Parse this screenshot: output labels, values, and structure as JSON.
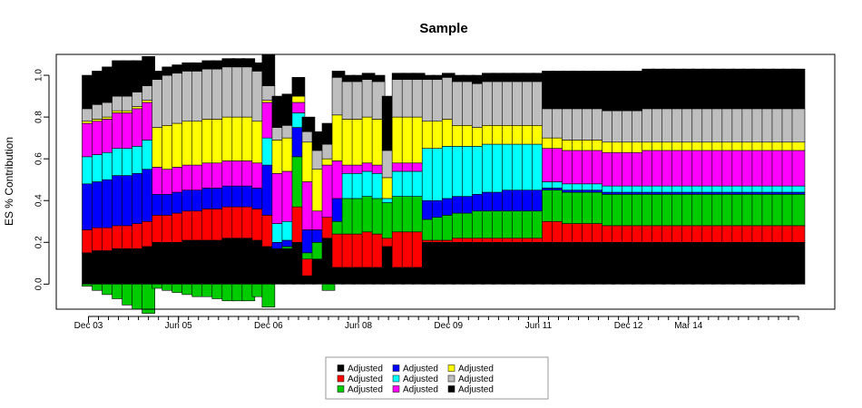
{
  "chart_data": {
    "type": "bar",
    "stacked": true,
    "title": "Sample",
    "xlabel": "",
    "ylabel": "ES % Contribution",
    "ylim": [
      -0.12,
      1.1
    ],
    "y_ticks": [
      0.0,
      0.2,
      0.4,
      0.6,
      0.8,
      1.0
    ],
    "y_tick_labels": [
      "0.0",
      "0.2",
      "0.4",
      "0.6",
      "0.8",
      "1.0"
    ],
    "x_ticks": [
      {
        "label": "Dec 03",
        "index": 0
      },
      {
        "label": "Jun 05",
        "index": 9
      },
      {
        "label": "Dec 06",
        "index": 18
      },
      {
        "label": "Jun 08",
        "index": 27
      },
      {
        "label": "Dec 09",
        "index": 36
      },
      {
        "label": "Jun 11",
        "index": 45
      },
      {
        "label": "Dec 12",
        "index": 54
      },
      {
        "label": "Mar 14",
        "index": 60
      }
    ],
    "grid": false,
    "legend_position": "bottom",
    "colors": [
      "#000000",
      "#ff0000",
      "#00cc00",
      "#0000ff",
      "#00ffff",
      "#ff00ff",
      "#ffff00",
      "#bebebe",
      "#000000"
    ],
    "series": [
      {
        "name": "Adjusted",
        "color": "#000000",
        "values": [
          0.15,
          0.16,
          0.16,
          0.17,
          0.17,
          0.17,
          0.18,
          0.2,
          0.2,
          0.2,
          0.21,
          0.21,
          0.21,
          0.21,
          0.22,
          0.22,
          0.22,
          0.21,
          0.18,
          0.17,
          0.17,
          0.2,
          0.04,
          0.12,
          0.22,
          0.08,
          0.08,
          0.08,
          0.08,
          0.08,
          0.18,
          0.08,
          0.08,
          0.08,
          0.2,
          0.2,
          0.2,
          0.2,
          0.2,
          0.2,
          0.2,
          0.2,
          0.2,
          0.2,
          0.2,
          0.2,
          0.2,
          0.2,
          0.2,
          0.2,
          0.2,
          0.2,
          0.2,
          0.2,
          0.2,
          0.2,
          0.2,
          0.2,
          0.2,
          0.2,
          0.2,
          0.2,
          0.2,
          0.2,
          0.2,
          0.2,
          0.2,
          0.2,
          0.2,
          0.2,
          0.2,
          0.2
        ]
      },
      {
        "name": "Adjusted",
        "color": "#ff0000",
        "values": [
          0.11,
          0.11,
          0.11,
          0.11,
          0.11,
          0.12,
          0.12,
          0.13,
          0.13,
          0.14,
          0.14,
          0.14,
          0.15,
          0.15,
          0.15,
          0.15,
          0.15,
          0.15,
          0.15,
          0.0,
          0.0,
          0.17,
          0.08,
          0.0,
          0.1,
          0.16,
          0.16,
          0.16,
          0.17,
          0.16,
          0.04,
          0.17,
          0.17,
          0.17,
          0.01,
          0.01,
          0.01,
          0.02,
          0.02,
          0.02,
          0.02,
          0.02,
          0.02,
          0.02,
          0.02,
          0.02,
          0.1,
          0.1,
          0.09,
          0.09,
          0.09,
          0.09,
          0.08,
          0.08,
          0.08,
          0.08,
          0.08,
          0.08,
          0.08,
          0.08,
          0.08,
          0.08,
          0.08,
          0.08,
          0.08,
          0.08,
          0.08,
          0.08,
          0.08,
          0.08,
          0.08,
          0.08
        ]
      },
      {
        "name": "Adjusted",
        "color": "#00cc00",
        "values": [
          -0.01,
          -0.03,
          -0.05,
          -0.07,
          -0.1,
          -0.12,
          -0.14,
          -0.02,
          -0.03,
          -0.04,
          -0.05,
          -0.06,
          -0.06,
          -0.07,
          -0.08,
          -0.08,
          -0.08,
          -0.06,
          -0.11,
          0.0,
          0.01,
          0.24,
          0.03,
          0.08,
          -0.03,
          0.06,
          0.17,
          0.17,
          0.17,
          0.17,
          0.17,
          0.17,
          0.17,
          0.17,
          0.1,
          0.11,
          0.12,
          0.12,
          0.12,
          0.13,
          0.13,
          0.13,
          0.13,
          0.13,
          0.13,
          0.13,
          0.15,
          0.15,
          0.15,
          0.15,
          0.15,
          0.15,
          0.15,
          0.15,
          0.15,
          0.15,
          0.15,
          0.15,
          0.15,
          0.15,
          0.15,
          0.15,
          0.15,
          0.15,
          0.15,
          0.15,
          0.15,
          0.15,
          0.15,
          0.15,
          0.15,
          0.15
        ]
      },
      {
        "name": "Adjusted",
        "color": "#0000ff",
        "values": [
          0.22,
          0.22,
          0.23,
          0.24,
          0.24,
          0.24,
          0.25,
          0.1,
          0.1,
          0.1,
          0.1,
          0.1,
          0.1,
          0.1,
          0.1,
          0.1,
          0.1,
          0.1,
          0.24,
          0.03,
          0.03,
          0.14,
          0.11,
          0.06,
          0.0,
          0.11,
          0.0,
          0.0,
          0.0,
          0.0,
          0.0,
          0.0,
          0.0,
          0.0,
          0.09,
          0.08,
          0.08,
          0.08,
          0.08,
          0.08,
          0.09,
          0.09,
          0.1,
          0.1,
          0.1,
          0.1,
          0.01,
          0.01,
          0.01,
          0.01,
          0.01,
          0.01,
          0.01,
          0.01,
          0.01,
          0.01,
          0.01,
          0.01,
          0.01,
          0.01,
          0.01,
          0.01,
          0.01,
          0.01,
          0.01,
          0.01,
          0.01,
          0.01,
          0.01,
          0.01,
          0.01,
          0.01
        ]
      },
      {
        "name": "Adjusted",
        "color": "#00ffff",
        "values": [
          0.13,
          0.13,
          0.13,
          0.13,
          0.13,
          0.13,
          0.14,
          0.0,
          0.0,
          0.0,
          0.0,
          0.0,
          0.0,
          0.0,
          0.0,
          0.0,
          0.0,
          0.0,
          0.13,
          0.09,
          0.09,
          0.07,
          0.0,
          0.0,
          0.0,
          0.0,
          0.12,
          0.12,
          0.12,
          0.12,
          0.02,
          0.12,
          0.12,
          0.12,
          0.25,
          0.25,
          0.25,
          0.24,
          0.24,
          0.23,
          0.23,
          0.23,
          0.22,
          0.22,
          0.22,
          0.22,
          0.03,
          0.03,
          0.03,
          0.03,
          0.03,
          0.03,
          0.03,
          0.03,
          0.03,
          0.03,
          0.03,
          0.03,
          0.03,
          0.03,
          0.03,
          0.03,
          0.03,
          0.03,
          0.03,
          0.03,
          0.03,
          0.03,
          0.03,
          0.03,
          0.03,
          0.03
        ]
      },
      {
        "name": "Adjusted",
        "color": "#ff00ff",
        "values": [
          0.16,
          0.16,
          0.16,
          0.17,
          0.17,
          0.18,
          0.18,
          0.13,
          0.12,
          0.12,
          0.12,
          0.12,
          0.12,
          0.12,
          0.12,
          0.12,
          0.12,
          0.12,
          0.17,
          0.24,
          0.24,
          0.05,
          0.23,
          0.09,
          0.25,
          0.18,
          0.04,
          0.04,
          0.04,
          0.04,
          0.0,
          0.04,
          0.04,
          0.04,
          0.0,
          0.0,
          0.0,
          0.0,
          0.0,
          0.0,
          0.0,
          0.0,
          0.0,
          0.0,
          0.0,
          0.0,
          0.16,
          0.16,
          0.16,
          0.16,
          0.16,
          0.16,
          0.16,
          0.16,
          0.16,
          0.16,
          0.17,
          0.17,
          0.17,
          0.17,
          0.17,
          0.17,
          0.17,
          0.17,
          0.17,
          0.17,
          0.17,
          0.17,
          0.17,
          0.17,
          0.17,
          0.17
        ]
      },
      {
        "name": "Adjusted",
        "color": "#ffff00",
        "values": [
          0.01,
          0.01,
          0.01,
          0.01,
          0.01,
          0.01,
          0.01,
          0.19,
          0.21,
          0.21,
          0.21,
          0.21,
          0.21,
          0.21,
          0.21,
          0.21,
          0.21,
          0.2,
          0.01,
          0.16,
          0.16,
          0.03,
          0.19,
          0.2,
          0.03,
          0.22,
          0.22,
          0.22,
          0.22,
          0.22,
          0.1,
          0.22,
          0.22,
          0.22,
          0.13,
          0.13,
          0.13,
          0.1,
          0.1,
          0.09,
          0.09,
          0.09,
          0.09,
          0.09,
          0.09,
          0.09,
          0.05,
          0.05,
          0.05,
          0.05,
          0.05,
          0.05,
          0.05,
          0.05,
          0.05,
          0.05,
          0.04,
          0.04,
          0.04,
          0.04,
          0.04,
          0.04,
          0.04,
          0.04,
          0.04,
          0.04,
          0.04,
          0.04,
          0.04,
          0.04,
          0.04,
          0.04
        ]
      },
      {
        "name": "Adjusted",
        "color": "#bebebe",
        "values": [
          0.06,
          0.07,
          0.07,
          0.07,
          0.07,
          0.07,
          0.07,
          0.23,
          0.24,
          0.24,
          0.24,
          0.24,
          0.24,
          0.24,
          0.24,
          0.24,
          0.24,
          0.24,
          0.07,
          0.06,
          0.06,
          0.0,
          0.05,
          0.09,
          0.07,
          0.18,
          0.18,
          0.18,
          0.18,
          0.18,
          0.13,
          0.18,
          0.18,
          0.18,
          0.2,
          0.2,
          0.2,
          0.21,
          0.21,
          0.21,
          0.21,
          0.21,
          0.21,
          0.21,
          0.21,
          0.21,
          0.14,
          0.14,
          0.15,
          0.15,
          0.15,
          0.15,
          0.15,
          0.15,
          0.15,
          0.15,
          0.16,
          0.16,
          0.16,
          0.16,
          0.16,
          0.16,
          0.16,
          0.16,
          0.16,
          0.16,
          0.16,
          0.16,
          0.16,
          0.16,
          0.16,
          0.16
        ]
      },
      {
        "name": "Adjusted",
        "color": "#000000",
        "values": [
          0.16,
          0.16,
          0.17,
          0.17,
          0.17,
          0.15,
          0.14,
          0.04,
          0.04,
          0.04,
          0.04,
          0.04,
          0.04,
          0.04,
          0.04,
          0.04,
          0.04,
          0.04,
          0.15,
          0.15,
          0.15,
          0.09,
          0.07,
          0.09,
          0.1,
          0.03,
          0.03,
          0.03,
          0.03,
          0.03,
          0.26,
          0.03,
          0.03,
          0.03,
          0.02,
          0.02,
          0.02,
          0.03,
          0.03,
          0.04,
          0.04,
          0.04,
          0.04,
          0.04,
          0.04,
          0.04,
          0.18,
          0.18,
          0.18,
          0.18,
          0.18,
          0.18,
          0.19,
          0.19,
          0.19,
          0.19,
          0.19,
          0.19,
          0.19,
          0.19,
          0.19,
          0.19,
          0.19,
          0.19,
          0.19,
          0.19,
          0.19,
          0.19,
          0.19,
          0.19,
          0.19,
          0.19
        ]
      }
    ]
  }
}
